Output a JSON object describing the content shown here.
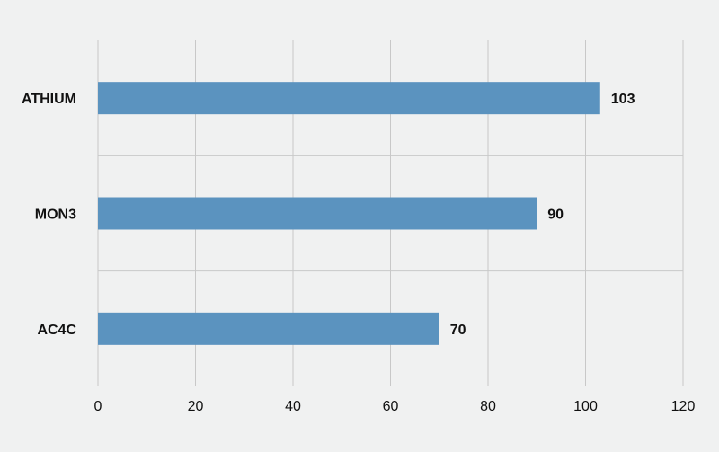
{
  "chart_data": {
    "type": "bar",
    "orientation": "horizontal",
    "categories": [
      "ATHIUM",
      "MON3",
      "AC4C"
    ],
    "values": [
      103,
      90,
      70
    ],
    "data_labels": [
      "103",
      "90",
      "70"
    ],
    "title": "",
    "xlabel": "",
    "ylabel": "",
    "xlim": [
      0,
      120
    ],
    "x_ticks": [
      0,
      20,
      40,
      60,
      80,
      100,
      120
    ],
    "x_tick_labels": [
      "0",
      "20",
      "40",
      "60",
      "80",
      "100",
      "120"
    ],
    "grid": true,
    "legend": "none",
    "colors": {
      "bar": "#5b93bf",
      "background": "#f0f1f1",
      "grid": "#c8c8c8",
      "text": "#111111"
    }
  }
}
